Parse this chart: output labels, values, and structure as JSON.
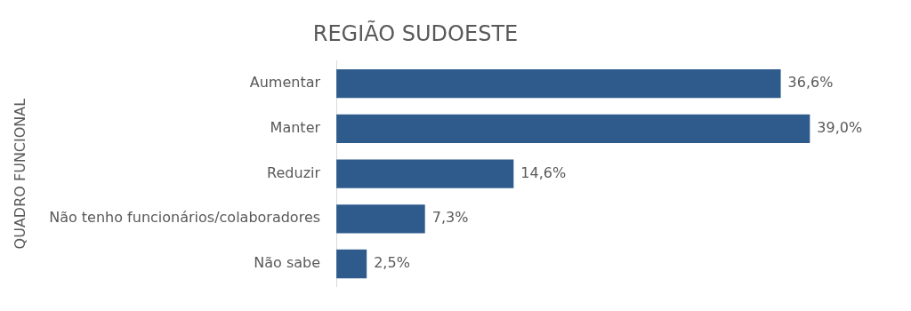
{
  "chart_data": {
    "type": "bar",
    "orientation": "horizontal",
    "title": "REGIÃO SUDOESTE",
    "ylabel": "QUADRO FUNCIONAL",
    "categories": [
      "Aumentar",
      "Manter",
      "Reduzir",
      "Não tenho funcionários/colaboradores",
      "Não sabe"
    ],
    "values": [
      36.6,
      39.0,
      14.6,
      7.3,
      2.5
    ],
    "color": "#2e5b8c",
    "value_labels": [
      "36,6%",
      "39,0%",
      "14,6%",
      "7,3%",
      "2,5%"
    ],
    "tick_labels": "y",
    "legend": false,
    "grid": false
  }
}
